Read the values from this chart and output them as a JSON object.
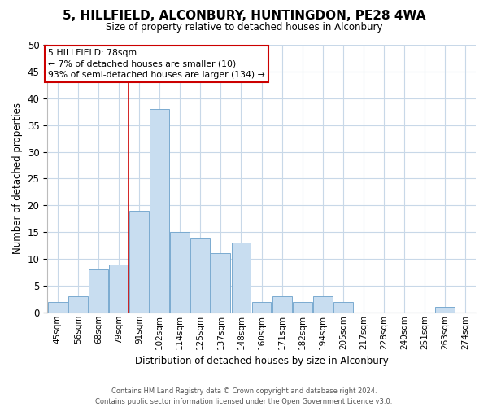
{
  "title": "5, HILLFIELD, ALCONBURY, HUNTINGDON, PE28 4WA",
  "subtitle": "Size of property relative to detached houses in Alconbury",
  "xlabel": "Distribution of detached houses by size in Alconbury",
  "ylabel": "Number of detached properties",
  "bar_color": "#c8ddf0",
  "bar_edge_color": "#7aaad0",
  "categories": [
    "45sqm",
    "56sqm",
    "68sqm",
    "79sqm",
    "91sqm",
    "102sqm",
    "114sqm",
    "125sqm",
    "137sqm",
    "148sqm",
    "160sqm",
    "171sqm",
    "182sqm",
    "194sqm",
    "205sqm",
    "217sqm",
    "228sqm",
    "240sqm",
    "251sqm",
    "263sqm",
    "274sqm"
  ],
  "values": [
    2,
    3,
    8,
    9,
    19,
    38,
    15,
    14,
    11,
    13,
    2,
    3,
    2,
    3,
    2,
    0,
    0,
    0,
    0,
    1,
    0
  ],
  "ylim": [
    0,
    50
  ],
  "yticks": [
    0,
    5,
    10,
    15,
    20,
    25,
    30,
    35,
    40,
    45,
    50
  ],
  "vline_color": "#cc0000",
  "vline_x_index": 3,
  "annotation_title": "5 HILLFIELD: 78sqm",
  "annotation_line1": "← 7% of detached houses are smaller (10)",
  "annotation_line2": "93% of semi-detached houses are larger (134) →",
  "annotation_box_color": "#ffffff",
  "annotation_box_edge": "#cc0000",
  "footer1": "Contains HM Land Registry data © Crown copyright and database right 2024.",
  "footer2": "Contains public sector information licensed under the Open Government Licence v3.0.",
  "background_color": "#ffffff",
  "grid_color": "#c8d8e8"
}
